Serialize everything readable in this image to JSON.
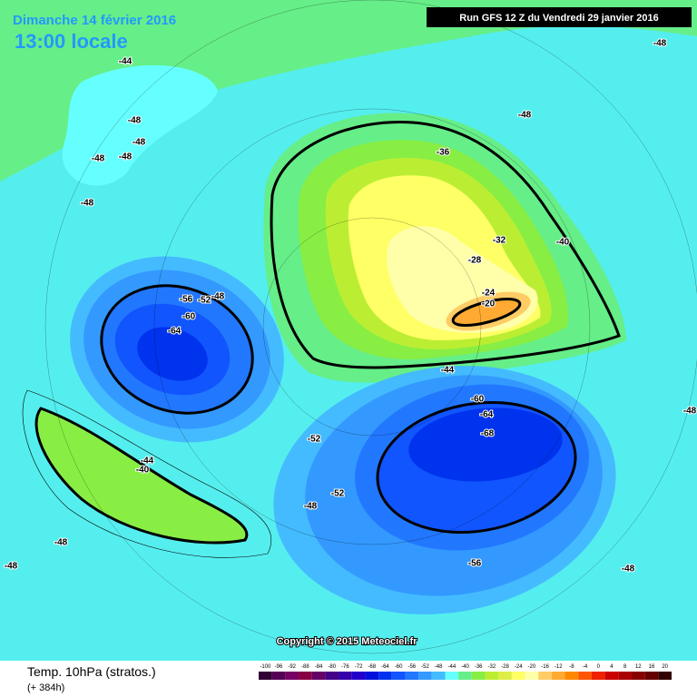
{
  "header": {
    "date": "Dimanche 14 février 2016",
    "time": "13:00 locale",
    "run": "Run GFS 12 Z du Vendredi 29 janvier 2016"
  },
  "map": {
    "contour_labels": [
      -44,
      -48,
      -48,
      -48,
      -48,
      -48,
      -48,
      -48,
      -36,
      -40,
      -32,
      -28,
      -24,
      -20,
      -44,
      -56,
      -52,
      -48,
      -60,
      -64,
      -60,
      -64,
      -68,
      -52,
      -44,
      -40,
      -52,
      -48,
      -48,
      -48,
      -56,
      -48,
      -48
    ],
    "copyright": "Copyright © 2015 Meteociel.fr"
  },
  "footer": {
    "title": "Temp. 10hPa (stratos.)",
    "lead": "(+ 384h)",
    "scale": [
      -100,
      -96,
      -92,
      -88,
      -84,
      -80,
      -76,
      -72,
      -68,
      -64,
      -60,
      -56,
      -52,
      -48,
      -44,
      -40,
      -36,
      -32,
      -28,
      -24,
      -20,
      -16,
      -12,
      -8,
      -4,
      0,
      4,
      8,
      12,
      16,
      20
    ],
    "scale_colors": [
      "#330033",
      "#550055",
      "#770066",
      "#880044",
      "#660066",
      "#440088",
      "#3300aa",
      "#2200cc",
      "#0011dd",
      "#0033ee",
      "#1155ff",
      "#2277ff",
      "#3399ff",
      "#44bbff",
      "#66ffff",
      "#66ee88",
      "#88ee44",
      "#bbee33",
      "#ddee44",
      "#ffff66",
      "#ffffaa",
      "#ffcc66",
      "#ffaa33",
      "#ff8800",
      "#ff5500",
      "#ee2200",
      "#cc0000",
      "#aa0000",
      "#880000",
      "#660000",
      "#330000"
    ]
  }
}
